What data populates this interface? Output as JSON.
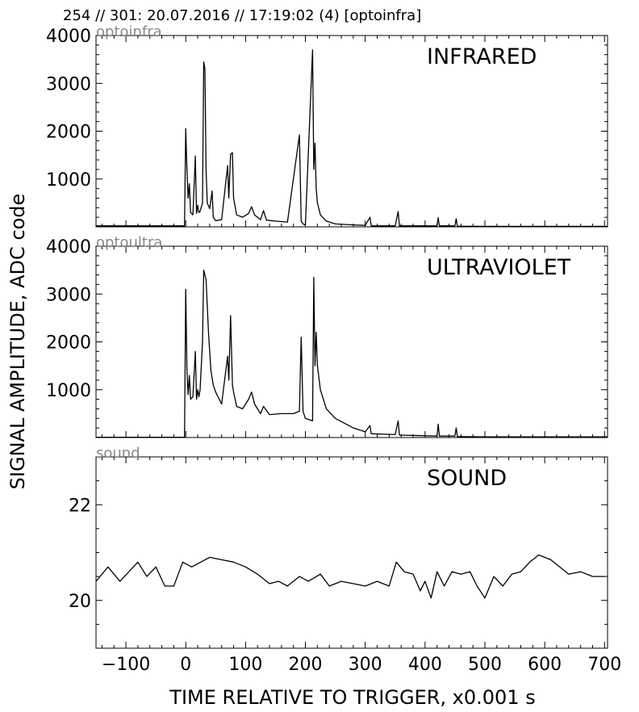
{
  "header": "254 // 301:   20.07.2016 // 17:19:02 (4)  [optoinfra]",
  "xlabel": "TIME RELATIVE TO TRIGGER,   x0.001 s",
  "ylabel": "SIGNAL AMPLITUDE,  ADC code",
  "chart_data": [
    {
      "type": "line",
      "label": "INFRARED",
      "source": "optoinfra",
      "xlim": [
        -150,
        705
      ],
      "ylim": [
        0,
        4000
      ],
      "yticks": [
        1000,
        2000,
        3000,
        4000
      ],
      "x": [
        -150,
        -2,
        0,
        2,
        4,
        6,
        8,
        12,
        16,
        18,
        20,
        22,
        24,
        28,
        30,
        32,
        34,
        36,
        40,
        44,
        46,
        50,
        60,
        70,
        72,
        75,
        78,
        80,
        85,
        95,
        105,
        110,
        115,
        125,
        130,
        135,
        150,
        170,
        190,
        193,
        196,
        200,
        212,
        214,
        216,
        218,
        220,
        225,
        235,
        250,
        280,
        300,
        308,
        310,
        350,
        355,
        357,
        420,
        422,
        424,
        450,
        452,
        454,
        500,
        705
      ],
      "y": [
        20,
        20,
        2050,
        1200,
        600,
        900,
        300,
        250,
        1480,
        280,
        450,
        300,
        320,
        500,
        3450,
        3300,
        1200,
        500,
        380,
        750,
        200,
        130,
        150,
        1280,
        600,
        1520,
        1550,
        600,
        250,
        200,
        280,
        420,
        250,
        150,
        340,
        140,
        120,
        100,
        1920,
        120,
        60,
        40,
        3700,
        1200,
        1750,
        800,
        500,
        250,
        120,
        60,
        40,
        30,
        200,
        20,
        20,
        320,
        20,
        20,
        190,
        20,
        20,
        170,
        15,
        10,
        10
      ]
    },
    {
      "type": "line",
      "label": "ULTRAVIOLET",
      "source": "optoultra",
      "xlim": [
        -150,
        705
      ],
      "ylim": [
        0,
        4000
      ],
      "yticks": [
        1000,
        2000,
        3000,
        4000
      ],
      "x": [
        -150,
        -2,
        0,
        2,
        4,
        6,
        8,
        12,
        16,
        18,
        20,
        22,
        24,
        28,
        30,
        34,
        38,
        42,
        46,
        50,
        60,
        70,
        72,
        75,
        78,
        80,
        85,
        95,
        105,
        110,
        115,
        125,
        130,
        140,
        160,
        180,
        190,
        193,
        196,
        200,
        212,
        214,
        216,
        218,
        220,
        225,
        235,
        250,
        280,
        300,
        308,
        310,
        350,
        355,
        357,
        420,
        422,
        424,
        450,
        452,
        454,
        500,
        705
      ],
      "y": [
        5,
        5,
        3100,
        1400,
        900,
        1300,
        800,
        850,
        1800,
        800,
        1000,
        850,
        1000,
        2000,
        3500,
        3300,
        2200,
        1400,
        1100,
        950,
        700,
        1700,
        1200,
        2550,
        1100,
        950,
        650,
        600,
        800,
        950,
        700,
        500,
        650,
        480,
        500,
        500,
        550,
        2100,
        550,
        400,
        350,
        3350,
        1500,
        2200,
        1500,
        1000,
        600,
        400,
        200,
        120,
        250,
        80,
        60,
        350,
        50,
        30,
        280,
        30,
        30,
        200,
        20,
        15,
        15
      ]
    },
    {
      "type": "line",
      "label": "SOUND",
      "source": "sound",
      "xlim": [
        -150,
        705
      ],
      "ylim": [
        19,
        23
      ],
      "yticks": [
        20,
        22
      ],
      "x": [
        -150,
        -130,
        -110,
        -95,
        -80,
        -65,
        -50,
        -35,
        -20,
        -5,
        10,
        25,
        40,
        60,
        80,
        100,
        120,
        140,
        155,
        170,
        190,
        205,
        225,
        240,
        260,
        280,
        300,
        320,
        340,
        352,
        365,
        380,
        392,
        400,
        410,
        420,
        432,
        445,
        460,
        475,
        487,
        500,
        515,
        530,
        545,
        560,
        575,
        590,
        610,
        625,
        640,
        660,
        680,
        700
      ],
      "y": [
        20.4,
        20.7,
        20.4,
        20.6,
        20.8,
        20.5,
        20.7,
        20.3,
        20.3,
        20.8,
        20.7,
        20.8,
        20.9,
        20.85,
        20.8,
        20.7,
        20.55,
        20.35,
        20.4,
        20.3,
        20.5,
        20.4,
        20.55,
        20.3,
        20.4,
        20.35,
        20.3,
        20.4,
        20.3,
        20.8,
        20.6,
        20.55,
        20.2,
        20.4,
        20.05,
        20.6,
        20.3,
        20.6,
        20.55,
        20.6,
        20.3,
        20.05,
        20.5,
        20.3,
        20.55,
        20.6,
        20.8,
        20.95,
        20.85,
        20.7,
        20.55,
        20.6,
        20.5,
        20.5
      ]
    }
  ],
  "xticks": [
    -100,
    0,
    100,
    200,
    300,
    400,
    500,
    600,
    700
  ]
}
